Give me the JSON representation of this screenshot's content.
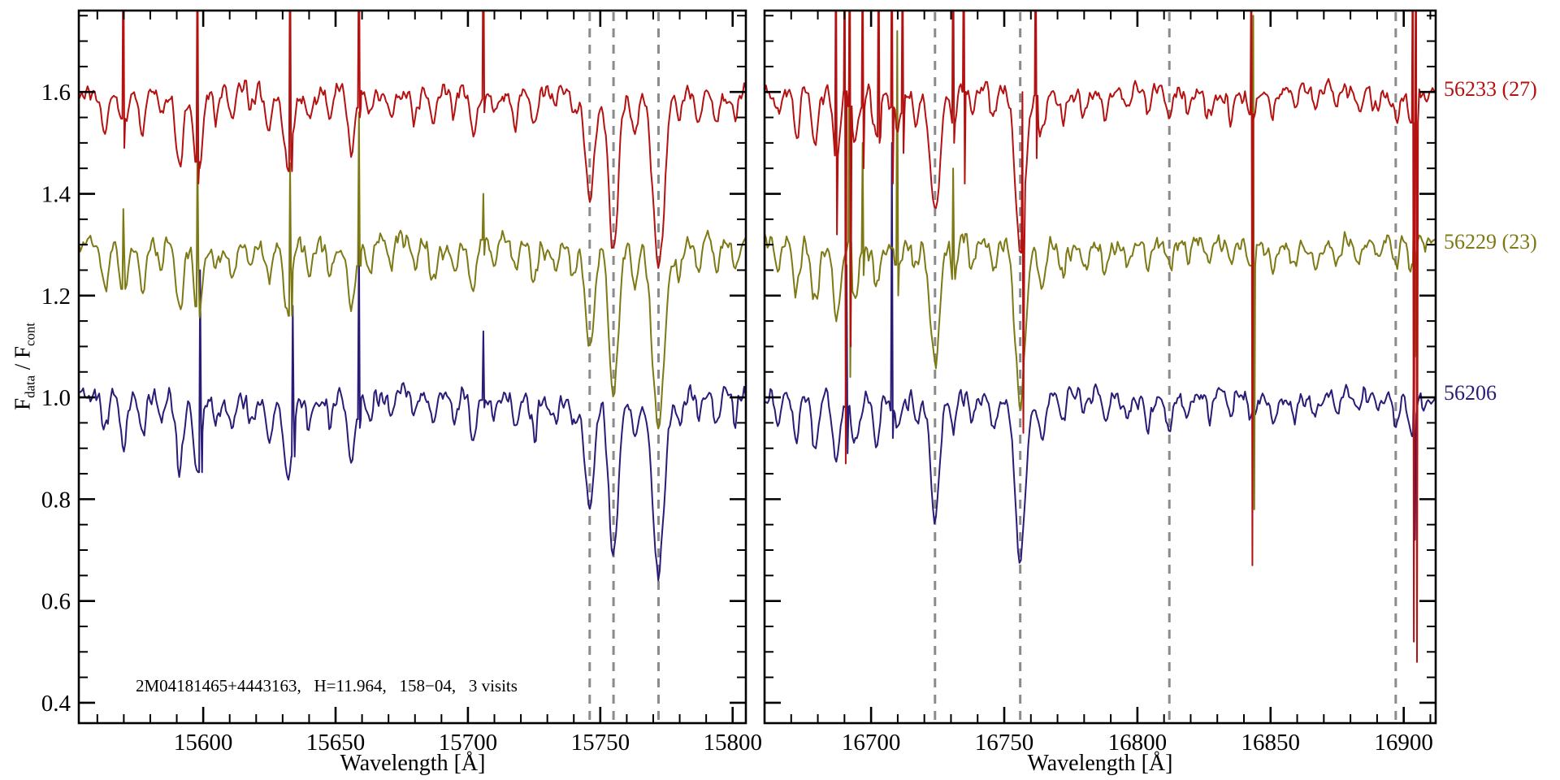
{
  "chart_data": {
    "type": "line",
    "title": "",
    "ylabel": "F_data / F_cont",
    "y_title": {
      "f1": "F",
      "sub1": "data",
      "sep": " / F",
      "f2": "",
      "sub2": "cont"
    },
    "ylim": [
      0.36,
      1.76
    ],
    "yticks": [
      0.4,
      0.6,
      0.8,
      1.0,
      1.2,
      1.4,
      1.6
    ],
    "ytick_labels": [
      "0.4",
      "0.6",
      "0.8",
      "1.0",
      "1.2",
      "1.4",
      "1.6"
    ],
    "y_minor_step": 0.05,
    "x_minor_step": 10,
    "grid": false,
    "legend_position": "right-outside",
    "reference_line_color": "#8b8b8b",
    "annotation": "2M04181465+4443163,   H=11.964,   158−04,   3 visits",
    "panels": [
      {
        "xlabel": "Wavelength [Å]",
        "xlim": [
          15553,
          15805
        ],
        "xticks": [
          15600,
          15650,
          15700,
          15750,
          15800
        ],
        "xtick_labels": [
          "15600",
          "15650",
          "15700",
          "15750",
          "15800"
        ],
        "dashed_lines": [
          15746,
          15755,
          15772
        ],
        "absorption_lines": [
          [
            15563,
            0.07,
            1.3
          ],
          [
            15570,
            0.11,
            1.2
          ],
          [
            15577,
            0.09,
            1.2
          ],
          [
            15584,
            0.05,
            1.0
          ],
          [
            15591,
            0.14,
            1.4
          ],
          [
            15598,
            0.15,
            1.5
          ],
          [
            15605,
            0.05,
            1.0
          ],
          [
            15611,
            0.06,
            1.0
          ],
          [
            15618,
            0.04,
            1.0
          ],
          [
            15625,
            0.08,
            1.2
          ],
          [
            15632,
            0.14,
            1.6
          ],
          [
            15640,
            0.06,
            1.0
          ],
          [
            15648,
            0.05,
            1.0
          ],
          [
            15656,
            0.12,
            1.4
          ],
          [
            15663,
            0.06,
            1.0
          ],
          [
            15671,
            0.04,
            1.0
          ],
          [
            15680,
            0.04,
            1.0
          ],
          [
            15687,
            0.07,
            1.1
          ],
          [
            15695,
            0.05,
            1.0
          ],
          [
            15702,
            0.09,
            1.2
          ],
          [
            15710,
            0.04,
            1.0
          ],
          [
            15718,
            0.05,
            1.0
          ],
          [
            15725,
            0.07,
            1.1
          ],
          [
            15733,
            0.04,
            1.0
          ],
          [
            15740,
            0.05,
            1.0
          ],
          [
            15746,
            0.21,
            1.7
          ],
          [
            15755,
            0.3,
            1.8
          ],
          [
            15763,
            0.08,
            1.2
          ],
          [
            15772,
            0.35,
            2.2
          ],
          [
            15780,
            0.06,
            1.1
          ],
          [
            15787,
            0.05,
            1.0
          ],
          [
            15794,
            0.06,
            1.0
          ],
          [
            15801,
            0.05,
            1.0
          ]
        ]
      },
      {
        "xlabel": "Wavelength [Å]",
        "xlim": [
          16660,
          16912
        ],
        "xticks": [
          16700,
          16750,
          16800,
          16850,
          16900
        ],
        "xtick_labels": [
          "16700",
          "16750",
          "16800",
          "16850",
          "16900"
        ],
        "dashed_lines": [
          16724,
          16756,
          16812,
          16897
        ],
        "absorption_lines": [
          [
            16665,
            0.05,
            1.0
          ],
          [
            16672,
            0.09,
            1.2
          ],
          [
            16679,
            0.11,
            1.3
          ],
          [
            16687,
            0.13,
            1.4
          ],
          [
            16694,
            0.1,
            1.2
          ],
          [
            16702,
            0.08,
            1.1
          ],
          [
            16710,
            0.06,
            1.0
          ],
          [
            16717,
            0.05,
            1.0
          ],
          [
            16724,
            0.24,
            1.8
          ],
          [
            16731,
            0.07,
            1.1
          ],
          [
            16738,
            0.05,
            1.0
          ],
          [
            16746,
            0.06,
            1.0
          ],
          [
            16756,
            0.31,
            1.9
          ],
          [
            16764,
            0.08,
            1.2
          ],
          [
            16772,
            0.05,
            1.0
          ],
          [
            16780,
            0.04,
            1.0
          ],
          [
            16788,
            0.05,
            1.0
          ],
          [
            16796,
            0.04,
            1.0
          ],
          [
            16804,
            0.05,
            1.0
          ],
          [
            16812,
            0.06,
            1.1
          ],
          [
            16819,
            0.04,
            1.0
          ],
          [
            16827,
            0.05,
            1.0
          ],
          [
            16835,
            0.04,
            1.0
          ],
          [
            16843,
            0.05,
            1.0
          ],
          [
            16851,
            0.04,
            1.0
          ],
          [
            16859,
            0.03,
            1.0
          ],
          [
            16867,
            0.04,
            1.0
          ],
          [
            16875,
            0.03,
            1.0
          ],
          [
            16883,
            0.04,
            1.0
          ],
          [
            16890,
            0.03,
            1.0
          ],
          [
            16897,
            0.05,
            1.0
          ],
          [
            16903,
            0.06,
            1.2
          ]
        ]
      }
    ],
    "series": [
      {
        "name": "56233 (27)",
        "color": "#b41111",
        "offset": 1.6,
        "spikes_left": [
          {
            "x": 15570,
            "up": 1.95,
            "down": 1.49
          },
          {
            "x": 15598,
            "up": 1.95,
            "down": 1.42
          },
          {
            "x": 15633,
            "up": 1.95,
            "down": 1.47
          },
          {
            "x": 15659,
            "up": 1.95,
            "down": 1.55
          },
          {
            "x": 15706,
            "up": 1.95,
            "down": 1.56
          }
        ],
        "spikes_right": [
          {
            "x": 16687,
            "up": 1.95,
            "down": 1.32
          },
          {
            "x": 16690.3,
            "up": 1.95,
            "down": 0.87
          },
          {
            "x": 16692.2,
            "up": 1.95,
            "down": 1.1
          },
          {
            "x": 16697,
            "up": 1.9,
            "down": 1.45
          },
          {
            "x": 16703,
            "up": 1.95,
            "down": 1.5
          },
          {
            "x": 16708,
            "up": 1.95,
            "down": 1.42
          },
          {
            "x": 16712,
            "up": 1.9,
            "down": 1.48
          },
          {
            "x": 16731,
            "up": 1.95,
            "down": 1.5
          },
          {
            "x": 16735,
            "up": 1.95,
            "down": 1.42
          },
          {
            "x": 16757,
            "up": 1.6,
            "down": 0.93
          },
          {
            "x": 16762,
            "up": 1.95,
            "down": 1.47
          },
          {
            "x": 16843,
            "up": 1.95,
            "down": 0.67
          },
          {
            "x": 16903.6,
            "up": 1.95,
            "down": 0.52
          },
          {
            "x": 16904.8,
            "up": 1.95,
            "down": 0.48
          }
        ]
      },
      {
        "name": "56229 (23)",
        "color": "#7d7914",
        "offset": 1.3,
        "spikes_left": [
          {
            "x": 15570,
            "up": 1.37,
            "down": 1.28
          },
          {
            "x": 15598,
            "up": 1.5,
            "down": 1.27
          },
          {
            "x": 15633,
            "up": 1.46,
            "down": 1.25
          },
          {
            "x": 15659,
            "up": 1.56,
            "down": 1.26
          },
          {
            "x": 15706,
            "up": 1.4,
            "down": 1.28
          }
        ],
        "spikes_right": [
          {
            "x": 16692,
            "up": 1.78,
            "down": 1.04
          },
          {
            "x": 16697,
            "up": 1.5,
            "down": 1.24
          },
          {
            "x": 16710,
            "up": 1.72,
            "down": 1.2
          },
          {
            "x": 16731,
            "up": 1.45,
            "down": 1.27
          },
          {
            "x": 16843.7,
            "up": 1.75,
            "down": 0.78
          },
          {
            "x": 16904,
            "up": 1.4,
            "down": 1.08
          }
        ]
      },
      {
        "name": "56206",
        "color": "#2b1b77",
        "offset": 1.0,
        "spikes_left": [
          {
            "x": 15599,
            "up": 1.25,
            "down": 0.96
          },
          {
            "x": 15634,
            "up": 1.18,
            "down": 0.97
          },
          {
            "x": 15659,
            "up": 1.33,
            "down": 0.94
          },
          {
            "x": 15706,
            "up": 1.13,
            "down": 0.98
          }
        ],
        "spikes_right": [
          {
            "x": 16691,
            "up": 1.26,
            "down": 0.89
          },
          {
            "x": 16708,
            "up": 1.5,
            "down": 0.92
          },
          {
            "x": 16904,
            "up": 1.06,
            "down": 0.72
          }
        ]
      }
    ]
  }
}
